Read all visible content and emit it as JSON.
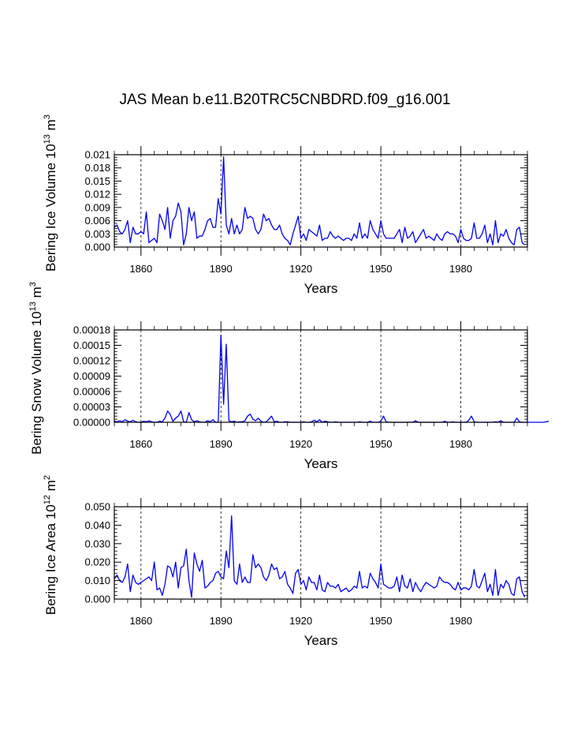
{
  "title": "JAS Mean b.e11.B20TRC5CNBDRD.f09_g16.001",
  "colors": {
    "line": "#0000ee",
    "axis": "#000000",
    "grid": "#000000"
  },
  "chart_data": [
    {
      "type": "line",
      "name": "ice-volume",
      "ylabel_main": "Bering Ice Volume 10",
      "ylabel_exp": "13",
      "ylabel_unit": " m",
      "ylabel_unit_exp": "3",
      "xlabel": "Years",
      "xlim": [
        1850,
        2005
      ],
      "ylim": [
        0,
        0.021
      ],
      "yticks": [
        0.0,
        0.003,
        0.006,
        0.009,
        0.012,
        0.015,
        0.018,
        0.021
      ],
      "ytick_labels": [
        "0.000",
        "0.003",
        "0.006",
        "0.009",
        "0.012",
        "0.015",
        "0.018",
        "0.021"
      ],
      "xticks": [
        1860,
        1890,
        1920,
        1950,
        1980
      ],
      "xtick_labels": [
        "1860",
        "1890",
        "1920",
        "1950",
        "1980"
      ],
      "x_start": 1850,
      "values": [
        0.0045,
        0.005,
        0.0035,
        0.003,
        0.004,
        0.006,
        0.001,
        0.0045,
        0.003,
        0.003,
        0.0035,
        0.003,
        0.008,
        0.001,
        0.0015,
        0.002,
        0.001,
        0.0075,
        0.006,
        0.004,
        0.009,
        0.002,
        0.006,
        0.007,
        0.01,
        0.008,
        0.0005,
        0.003,
        0.009,
        0.006,
        0.008,
        0.002,
        0.0025,
        0.0025,
        0.004,
        0.006,
        0.0065,
        0.0045,
        0.0045,
        0.011,
        0.0075,
        0.0205,
        0.005,
        0.003,
        0.0065,
        0.003,
        0.005,
        0.003,
        0.004,
        0.009,
        0.0065,
        0.007,
        0.0065,
        0.004,
        0.003,
        0.004,
        0.0075,
        0.006,
        0.0065,
        0.005,
        0.004,
        0.004,
        0.005,
        0.003,
        0.002,
        0.0015,
        0.0005,
        0.003,
        0.005,
        0.007,
        0.002,
        0.003,
        0.0015,
        0.004,
        0.0035,
        0.003,
        0.0025,
        0.005,
        0.0015,
        0.002,
        0.002,
        0.0035,
        0.0025,
        0.002,
        0.0025,
        0.002,
        0.0015,
        0.002,
        0.002,
        0.0015,
        0.003,
        0.002,
        0.0055,
        0.002,
        0.003,
        0.002,
        0.006,
        0.004,
        0.003,
        0.002,
        0.006,
        0.003,
        0.002,
        0.002,
        0.002,
        0.002,
        0.003,
        0.004,
        0.001,
        0.0045,
        0.002,
        0.0025,
        0.0035,
        0.001,
        0.002,
        0.003,
        0.004,
        0.002,
        0.0025,
        0.002,
        0.0015,
        0.003,
        0.002,
        0.0015,
        0.003,
        0.0035,
        0.003,
        0.003,
        0.0025,
        0.001,
        0.004,
        0.002,
        0.0015,
        0.0015,
        0.002,
        0.0055,
        0.002,
        0.002,
        0.003,
        0.005,
        0.001,
        0.003,
        0.0005,
        0.006,
        0.001,
        0.003,
        0.0025,
        0.004,
        0.002,
        0.001,
        0.0005,
        0.004,
        0.0045,
        0.001,
        0.0005
      ]
    },
    {
      "type": "line",
      "name": "snow-volume",
      "ylabel_main": "Bering Snow Volume 10",
      "ylabel_exp": "13",
      "ylabel_unit": " m",
      "ylabel_unit_exp": "3",
      "xlabel": "Years",
      "xlim": [
        1850,
        2005
      ],
      "ylim": [
        0,
        0.00018
      ],
      "yticks": [
        0,
        3e-05,
        6e-05,
        9e-05,
        0.00012,
        0.00015,
        0.00018
      ],
      "ytick_labels": [
        "0.00000",
        "0.00003",
        "0.00006",
        "0.00009",
        "0.00012",
        "0.00015",
        "0.00018"
      ],
      "xticks": [
        1860,
        1890,
        1920,
        1950,
        1980
      ],
      "xtick_labels": [
        "1860",
        "1890",
        "1920",
        "1950",
        "1980"
      ],
      "x_start": 1850,
      "values": [
        2e-06,
        1e-06,
        3e-06,
        1e-06,
        5e-06,
        2e-06,
        1e-06,
        4e-06,
        1e-06,
        0,
        0,
        2e-06,
        1e-06,
        3e-06,
        1e-06,
        0,
        0,
        2e-06,
        1e-06,
        8e-06,
        2.2e-05,
        1.5e-05,
        2e-06,
        8e-06,
        1.2e-05,
        2.2e-05,
        1e-06,
        0,
        1.9e-05,
        5e-06,
        1e-06,
        3e-06,
        1e-06,
        0,
        0,
        3e-06,
        1e-06,
        5e-06,
        0,
        0,
        0.00017,
        3.5e-05,
        0.000152,
        3e-06,
        1e-06,
        2e-06,
        0,
        1e-06,
        1e-06,
        3e-06,
        1.2e-05,
        1.6e-05,
        6e-06,
        3e-06,
        8e-06,
        2e-06,
        0,
        1e-06,
        6e-06,
        1.2e-05,
        1e-06,
        2e-06,
        0,
        0,
        1e-06,
        1e-06,
        0,
        0,
        0,
        0,
        0,
        1e-06,
        0,
        0,
        1e-06,
        4e-06,
        1e-06,
        5e-06,
        0,
        2e-06,
        1e-06,
        0,
        0,
        1e-06,
        0,
        0,
        0,
        0,
        0,
        0,
        0,
        0,
        1e-06,
        0,
        0,
        0,
        2e-06,
        0,
        0,
        0,
        2e-06,
        1.2e-05,
        1e-06,
        0,
        0,
        0,
        0,
        0,
        0,
        0,
        0,
        0,
        0,
        3e-06,
        0,
        0,
        0,
        0,
        0,
        0,
        0,
        0,
        0,
        0,
        2e-06,
        0,
        0,
        1e-06,
        0,
        0,
        0,
        0,
        0,
        4e-06,
        1.2e-05,
        1e-06,
        0,
        0,
        0,
        0,
        0,
        0,
        0,
        1e-06,
        0,
        3e-06,
        0,
        0,
        0,
        0,
        0,
        8e-06,
        1e-06,
        0,
        0,
        0,
        0,
        0,
        0,
        0,
        0,
        0,
        1e-06,
        2e-06
      ]
    },
    {
      "type": "line",
      "name": "ice-area",
      "ylabel_main": "Bering Ice Area 10",
      "ylabel_exp": "12",
      "ylabel_unit": " m",
      "ylabel_unit_exp": "2",
      "xlabel": "Years",
      "xlim": [
        1850,
        2005
      ],
      "ylim": [
        0,
        0.05
      ],
      "yticks": [
        0.0,
        0.01,
        0.02,
        0.03,
        0.04,
        0.05
      ],
      "ytick_labels": [
        "0.000",
        "0.010",
        "0.020",
        "0.030",
        "0.040",
        "0.050"
      ],
      "xticks": [
        1860,
        1890,
        1920,
        1950,
        1980
      ],
      "xtick_labels": [
        "1860",
        "1890",
        "1920",
        "1950",
        "1980"
      ],
      "x_start": 1850,
      "values": [
        0.011,
        0.013,
        0.01,
        0.009,
        0.012,
        0.019,
        0.004,
        0.013,
        0.009,
        0.008,
        0.009,
        0.01,
        0.011,
        0.012,
        0.01,
        0.02,
        0.005,
        0.006,
        0.002,
        0.008,
        0.018,
        0.017,
        0.012,
        0.02,
        0.006,
        0.017,
        0.018,
        0.027,
        0.01,
        0.001,
        0.025,
        0.019,
        0.015,
        0.021,
        0.006,
        0.007,
        0.009,
        0.01,
        0.014,
        0.015,
        0.012,
        0.011,
        0.026,
        0.017,
        0.045,
        0.01,
        0.008,
        0.019,
        0.009,
        0.012,
        0.009,
        0.009,
        0.024,
        0.017,
        0.019,
        0.017,
        0.012,
        0.01,
        0.013,
        0.019,
        0.016,
        0.017,
        0.011,
        0.012,
        0.015,
        0.008,
        0.006,
        0.003,
        0.014,
        0.016,
        0.008,
        0.01,
        0.005,
        0.012,
        0.009,
        0.009,
        0.005,
        0.013,
        0.005,
        0.004,
        0.009,
        0.007,
        0.007,
        0.006,
        0.008,
        0.004,
        0.005,
        0.006,
        0.004,
        0.005,
        0.007,
        0.006,
        0.015,
        0.006,
        0.007,
        0.006,
        0.014,
        0.011,
        0.009,
        0.006,
        0.019,
        0.008,
        0.007,
        0.006,
        0.006,
        0.007,
        0.012,
        0.004,
        0.013,
        0.007,
        0.006,
        0.011,
        0.004,
        0.009,
        0.006,
        0.004,
        0.007,
        0.009,
        0.008,
        0.007,
        0.006,
        0.007,
        0.012,
        0.01,
        0.009,
        0.009,
        0.008,
        0.006,
        0.005,
        0.009,
        0.005,
        0.006,
        0.006,
        0.005,
        0.007,
        0.016,
        0.007,
        0.006,
        0.01,
        0.014,
        0.004,
        0.008,
        0.002,
        0.016,
        0.002,
        0.008,
        0.006,
        0.01,
        0.008,
        0.003,
        0.002,
        0.011,
        0.012,
        0.004,
        0.001
      ]
    }
  ]
}
